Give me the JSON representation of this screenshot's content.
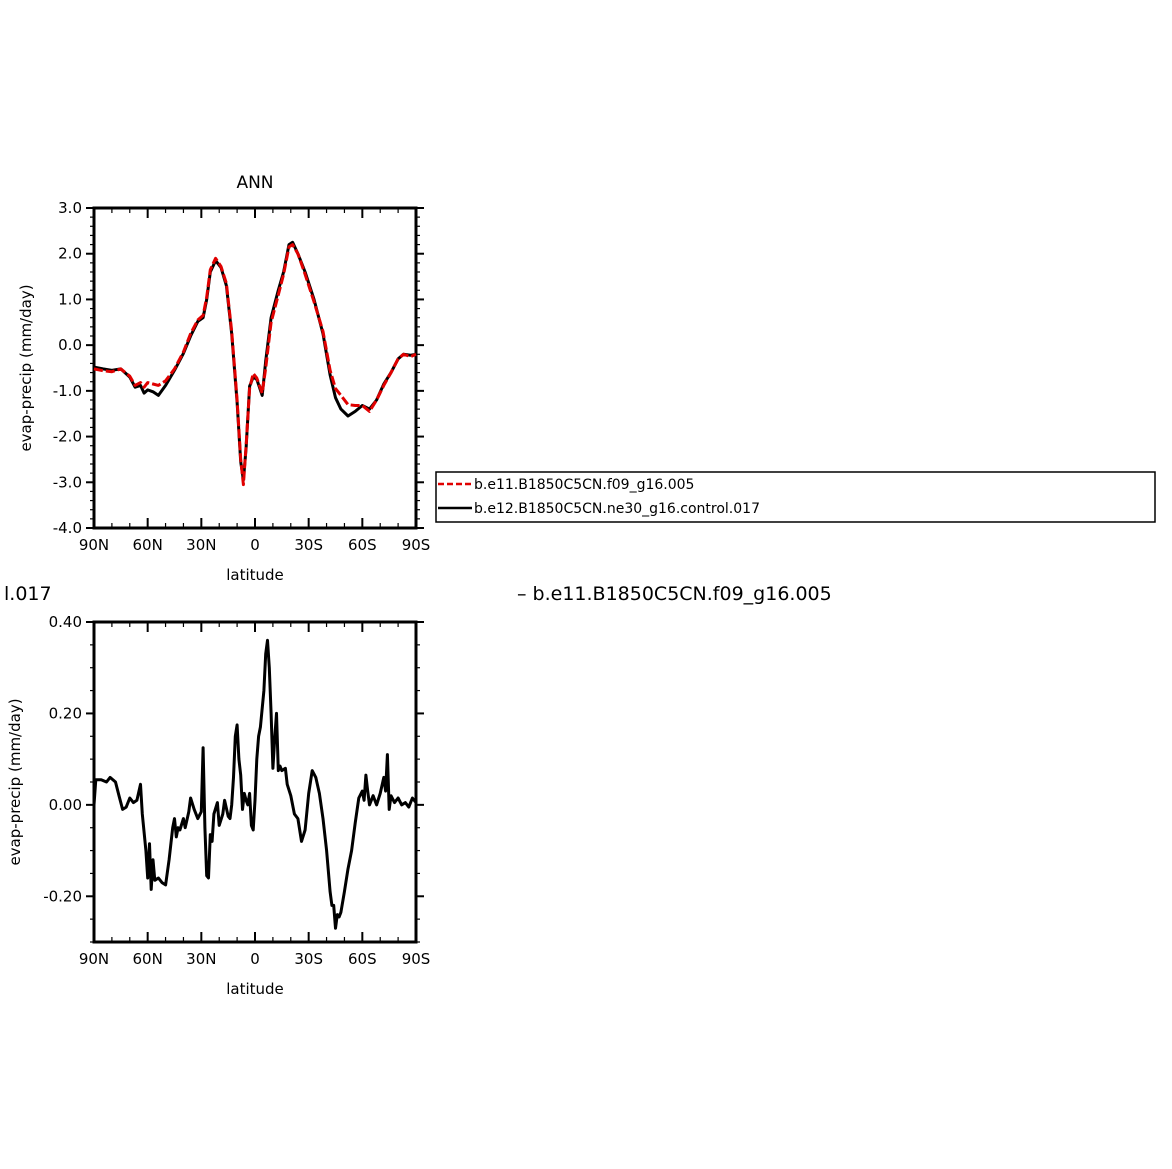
{
  "chart_data": [
    {
      "type": "line",
      "title": "ANN",
      "xlabel": "latitude",
      "ylabel": "evap-precip (mm/day)",
      "xlim": [
        90,
        -90
      ],
      "ylim": [
        -4.0,
        3.0
      ],
      "x_ticks": [
        90,
        60,
        30,
        0,
        -30,
        -60,
        -90
      ],
      "x_tick_labels": [
        "90N",
        "60N",
        "30N",
        "0",
        "30S",
        "60S",
        "90S"
      ],
      "y_ticks": [
        3.0,
        2.0,
        1.0,
        0.0,
        -1.0,
        -2.0,
        -3.0,
        -4.0
      ],
      "y_tick_labels": [
        "3.0",
        "2.0",
        "1.0",
        "0.0",
        "-1.0",
        "-2.0",
        "-3.0",
        "-4.0"
      ],
      "legend_placement": "right",
      "series": [
        {
          "name": "b.e11.B1850C5CN.f09_g16.005",
          "color": "#e00000",
          "dash": true,
          "points": [
            [
              90,
              -0.52
            ],
            [
              85,
              -0.56
            ],
            [
              80,
              -0.58
            ],
            [
              75,
              -0.52
            ],
            [
              70,
              -0.68
            ],
            [
              67,
              -0.88
            ],
            [
              64,
              -0.82
            ],
            [
              62,
              -0.92
            ],
            [
              60,
              -0.82
            ],
            [
              57,
              -0.85
            ],
            [
              54,
              -0.88
            ],
            [
              50,
              -0.78
            ],
            [
              45,
              -0.52
            ],
            [
              40,
              -0.15
            ],
            [
              36,
              0.25
            ],
            [
              32,
              0.55
            ],
            [
              29,
              0.65
            ],
            [
              27,
              1.05
            ],
            [
              25,
              1.65
            ],
            [
              22,
              1.9
            ],
            [
              19,
              1.72
            ],
            [
              16,
              1.35
            ],
            [
              13,
              0.3
            ],
            [
              10,
              -1.2
            ],
            [
              8,
              -2.5
            ],
            [
              6.5,
              -3.05
            ],
            [
              5,
              -2.2
            ],
            [
              3,
              -0.95
            ],
            [
              1,
              -0.62
            ],
            [
              -1,
              -0.72
            ],
            [
              -4,
              -1.05
            ],
            [
              -6,
              -0.5
            ],
            [
              -9,
              0.5
            ],
            [
              -13,
              1.1
            ],
            [
              -16,
              1.55
            ],
            [
              -19,
              2.15
            ],
            [
              -21,
              2.2
            ],
            [
              -24,
              2.0
            ],
            [
              -28,
              1.55
            ],
            [
              -33,
              0.95
            ],
            [
              -38,
              0.3
            ],
            [
              -42,
              -0.55
            ],
            [
              -45,
              -0.95
            ],
            [
              -48,
              -1.1
            ],
            [
              -52,
              -1.3
            ],
            [
              -56,
              -1.32
            ],
            [
              -60,
              -1.32
            ],
            [
              -64,
              -1.45
            ],
            [
              -68,
              -1.2
            ],
            [
              -72,
              -0.88
            ],
            [
              -76,
              -0.6
            ],
            [
              -80,
              -0.3
            ],
            [
              -83,
              -0.2
            ],
            [
              -87,
              -0.25
            ],
            [
              -90,
              -0.2
            ]
          ]
        },
        {
          "name": "b.e12.B1850C5CN.ne30_g16.control.017",
          "color": "#000000",
          "dash": false,
          "points": [
            [
              90,
              -0.48
            ],
            [
              85,
              -0.52
            ],
            [
              80,
              -0.55
            ],
            [
              75,
              -0.52
            ],
            [
              70,
              -0.7
            ],
            [
              67,
              -0.92
            ],
            [
              64,
              -0.88
            ],
            [
              62,
              -1.05
            ],
            [
              60,
              -0.98
            ],
            [
              57,
              -1.02
            ],
            [
              54,
              -1.1
            ],
            [
              50,
              -0.88
            ],
            [
              45,
              -0.55
            ],
            [
              40,
              -0.18
            ],
            [
              36,
              0.2
            ],
            [
              32,
              0.52
            ],
            [
              29,
              0.6
            ],
            [
              27,
              1.0
            ],
            [
              25,
              1.6
            ],
            [
              22,
              1.85
            ],
            [
              19,
              1.7
            ],
            [
              16,
              1.3
            ],
            [
              13,
              0.25
            ],
            [
              10,
              -1.25
            ],
            [
              8,
              -2.55
            ],
            [
              6.5,
              -2.95
            ],
            [
              5,
              -2.25
            ],
            [
              3,
              -0.9
            ],
            [
              1,
              -0.7
            ],
            [
              -1,
              -0.75
            ],
            [
              -4,
              -1.1
            ],
            [
              -6,
              -0.35
            ],
            [
              -9,
              0.6
            ],
            [
              -13,
              1.2
            ],
            [
              -16,
              1.6
            ],
            [
              -19,
              2.2
            ],
            [
              -21,
              2.25
            ],
            [
              -24,
              2.0
            ],
            [
              -28,
              1.6
            ],
            [
              -33,
              1.0
            ],
            [
              -38,
              0.25
            ],
            [
              -42,
              -0.65
            ],
            [
              -45,
              -1.15
            ],
            [
              -48,
              -1.4
            ],
            [
              -52,
              -1.55
            ],
            [
              -56,
              -1.45
            ],
            [
              -60,
              -1.32
            ],
            [
              -64,
              -1.4
            ],
            [
              -68,
              -1.2
            ],
            [
              -72,
              -0.85
            ],
            [
              -76,
              -0.6
            ],
            [
              -80,
              -0.3
            ],
            [
              -83,
              -0.2
            ],
            [
              -87,
              -0.22
            ],
            [
              -90,
              -0.2
            ]
          ]
        }
      ]
    },
    {
      "type": "line",
      "title": "",
      "xlabel": "latitude",
      "ylabel": "evap-precip (mm/day)",
      "xlim": [
        90,
        -90
      ],
      "ylim": [
        -0.3,
        0.4
      ],
      "x_ticks": [
        90,
        60,
        30,
        0,
        -30,
        -60,
        -90
      ],
      "x_tick_labels": [
        "90N",
        "60N",
        "30N",
        "0",
        "30S",
        "60S",
        "90S"
      ],
      "y_ticks": [
        0.4,
        0.2,
        0.0,
        -0.2
      ],
      "y_tick_labels": [
        "0.40",
        "0.20",
        "0.00",
        "-0.20"
      ],
      "top_left_text": "l.017",
      "top_right_text": "– b.e11.B1850C5CN.f09_g16.005",
      "series": [
        {
          "color": "#000000",
          "dash": false,
          "points": [
            [
              90,
              0.0
            ],
            [
              89,
              0.055
            ],
            [
              86,
              0.055
            ],
            [
              83,
              0.05
            ],
            [
              81,
              0.06
            ],
            [
              78,
              0.05
            ],
            [
              76,
              0.02
            ],
            [
              74,
              -0.01
            ],
            [
              72,
              -0.005
            ],
            [
              70,
              0.015
            ],
            [
              68,
              0.005
            ],
            [
              66,
              0.01
            ],
            [
              64,
              0.045
            ],
            [
              63,
              -0.02
            ],
            [
              61,
              -0.1
            ],
            [
              60,
              -0.16
            ],
            [
              59,
              -0.085
            ],
            [
              58,
              -0.185
            ],
            [
              57,
              -0.12
            ],
            [
              56,
              -0.165
            ],
            [
              54,
              -0.16
            ],
            [
              52,
              -0.17
            ],
            [
              50,
              -0.175
            ],
            [
              48,
              -0.12
            ],
            [
              46,
              -0.05
            ],
            [
              45,
              -0.03
            ],
            [
              44,
              -0.07
            ],
            [
              43,
              -0.05
            ],
            [
              42,
              -0.055
            ],
            [
              40,
              -0.03
            ],
            [
              39,
              -0.05
            ],
            [
              37,
              -0.015
            ],
            [
              36,
              0.015
            ],
            [
              34,
              -0.01
            ],
            [
              32,
              -0.03
            ],
            [
              30,
              -0.015
            ],
            [
              29,
              0.125
            ],
            [
              28,
              -0.05
            ],
            [
              27,
              -0.155
            ],
            [
              26,
              -0.16
            ],
            [
              25,
              -0.065
            ],
            [
              24,
              -0.08
            ],
            [
              23,
              -0.02
            ],
            [
              21,
              0.005
            ],
            [
              20,
              -0.045
            ],
            [
              18,
              -0.02
            ],
            [
              17,
              0.01
            ],
            [
              15,
              -0.025
            ],
            [
              14,
              -0.03
            ],
            [
              13,
              0.0
            ],
            [
              12,
              0.06
            ],
            [
              11,
              0.15
            ],
            [
              10,
              0.175
            ],
            [
              9,
              0.1
            ],
            [
              8,
              0.065
            ],
            [
              7,
              -0.01
            ],
            [
              6,
              0.025
            ],
            [
              5,
              0.01
            ],
            [
              4,
              0.0
            ],
            [
              3,
              0.025
            ],
            [
              2,
              -0.045
            ],
            [
              1,
              -0.055
            ],
            [
              0,
              0.01
            ],
            [
              -1,
              0.1
            ],
            [
              -2,
              0.15
            ],
            [
              -3,
              0.17
            ],
            [
              -5,
              0.25
            ],
            [
              -6,
              0.33
            ],
            [
              -7,
              0.36
            ],
            [
              -8,
              0.3
            ],
            [
              -9,
              0.2
            ],
            [
              -10,
              0.08
            ],
            [
              -11,
              0.145
            ],
            [
              -12,
              0.2
            ],
            [
              -13,
              0.075
            ],
            [
              -14,
              0.085
            ],
            [
              -15,
              0.075
            ],
            [
              -17,
              0.08
            ],
            [
              -18,
              0.045
            ],
            [
              -20,
              0.02
            ],
            [
              -22,
              -0.02
            ],
            [
              -24,
              -0.03
            ],
            [
              -26,
              -0.08
            ],
            [
              -28,
              -0.055
            ],
            [
              -30,
              0.025
            ],
            [
              -32,
              0.075
            ],
            [
              -34,
              0.06
            ],
            [
              -36,
              0.025
            ],
            [
              -38,
              -0.03
            ],
            [
              -40,
              -0.1
            ],
            [
              -42,
              -0.19
            ],
            [
              -43,
              -0.22
            ],
            [
              -44,
              -0.22
            ],
            [
              -45,
              -0.27
            ],
            [
              -46,
              -0.24
            ],
            [
              -47,
              -0.245
            ],
            [
              -48,
              -0.235
            ],
            [
              -50,
              -0.19
            ],
            [
              -52,
              -0.14
            ],
            [
              -54,
              -0.1
            ],
            [
              -56,
              -0.04
            ],
            [
              -58,
              0.015
            ],
            [
              -60,
              0.03
            ],
            [
              -61,
              0.01
            ],
            [
              -62,
              0.065
            ],
            [
              -63,
              0.03
            ],
            [
              -64,
              0.0
            ],
            [
              -66,
              0.02
            ],
            [
              -68,
              0.0
            ],
            [
              -70,
              0.025
            ],
            [
              -72,
              0.06
            ],
            [
              -73,
              0.03
            ],
            [
              -74,
              0.11
            ],
            [
              -75,
              -0.01
            ],
            [
              -76,
              0.02
            ],
            [
              -78,
              0.005
            ],
            [
              -80,
              0.015
            ],
            [
              -82,
              0.0
            ],
            [
              -84,
              0.005
            ],
            [
              -86,
              -0.005
            ],
            [
              -88,
              0.015
            ],
            [
              -90,
              0.005
            ]
          ]
        }
      ]
    }
  ]
}
